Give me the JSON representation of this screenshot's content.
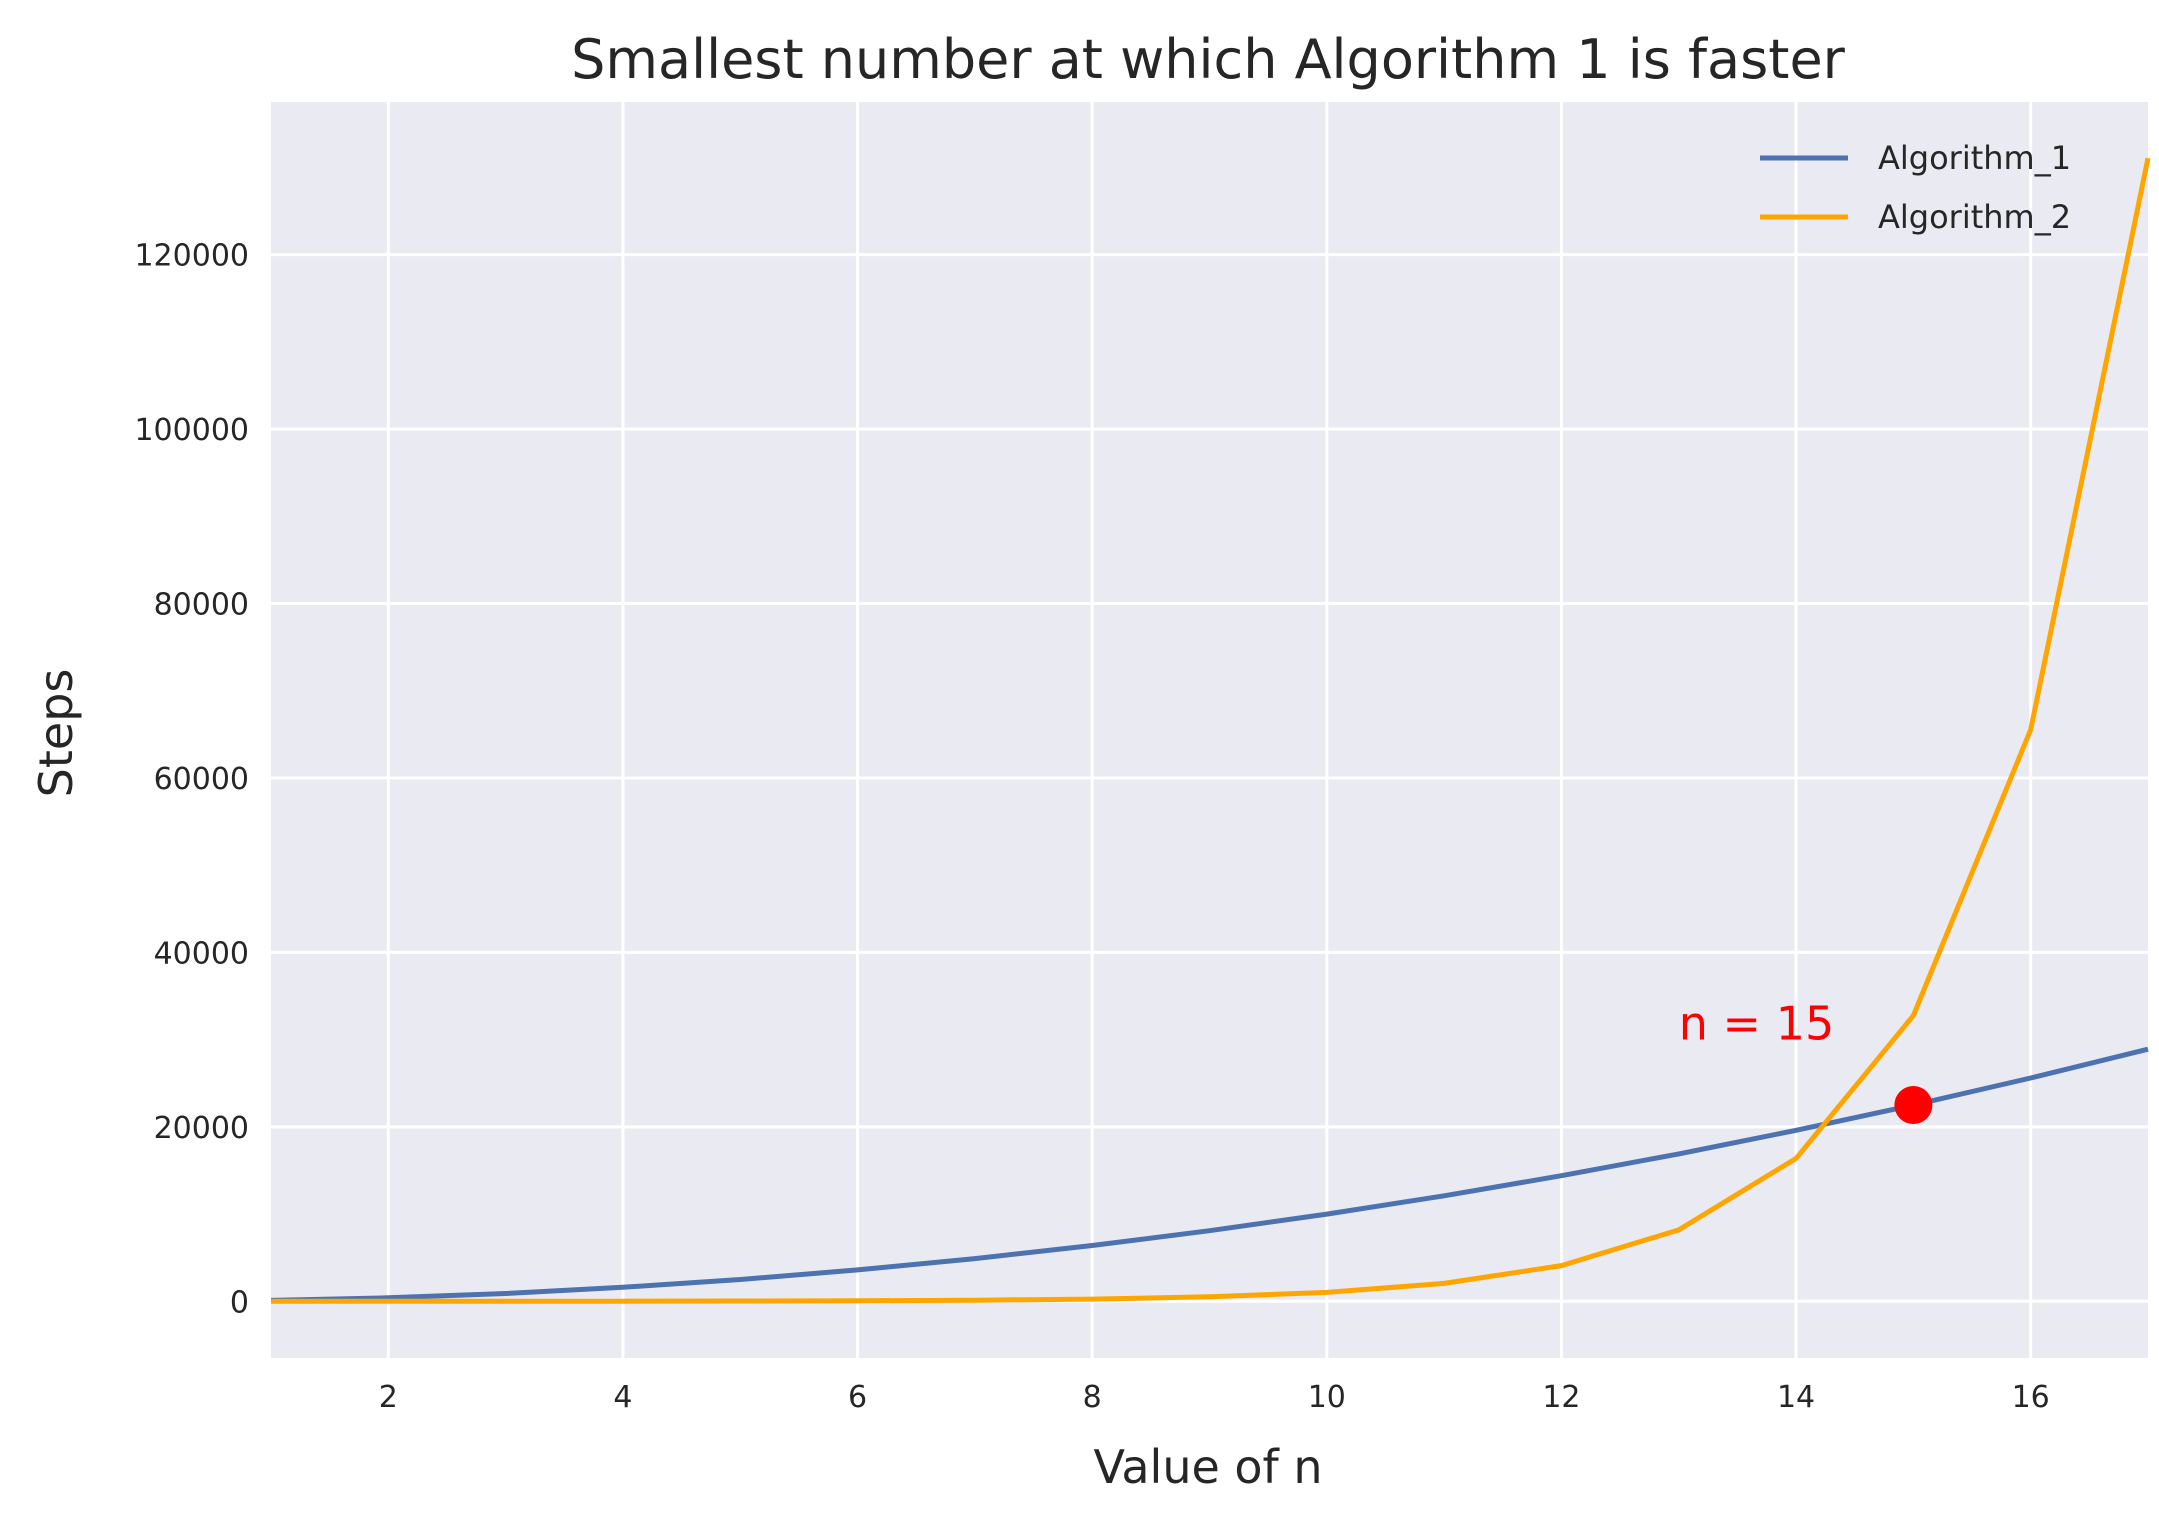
{
  "chart_data": {
    "type": "line",
    "title": "Smallest number at which Algorithm 1 is faster",
    "xlabel": "Value of n",
    "ylabel": "Steps",
    "xlim": [
      1,
      17
    ],
    "ylim": [
      -6500,
      137500
    ],
    "xticks": [
      2,
      4,
      6,
      8,
      10,
      12,
      14,
      16
    ],
    "yticks": [
      0,
      20000,
      40000,
      60000,
      80000,
      100000,
      120000
    ],
    "grid": true,
    "background": "#eaeaf2",
    "legend_position": "top-right",
    "x": [
      1,
      2,
      3,
      4,
      5,
      6,
      7,
      8,
      9,
      10,
      11,
      12,
      13,
      14,
      15,
      16,
      17
    ],
    "series": [
      {
        "name": "Algorithm_1",
        "color": "#4c72b0",
        "values": [
          100,
          400,
          900,
          1600,
          2500,
          3600,
          4900,
          6400,
          8100,
          10000,
          12100,
          14400,
          16900,
          19600,
          22500,
          25600,
          28900
        ]
      },
      {
        "name": "Algorithm_2",
        "color": "#ffa500",
        "values": [
          2,
          4,
          8,
          16,
          32,
          64,
          128,
          256,
          512,
          1024,
          2048,
          4096,
          8192,
          16384,
          32768,
          65536,
          131072
        ]
      }
    ],
    "annotation": {
      "text": "n = 15",
      "color": "#ff0000",
      "point": {
        "x": 15,
        "y": 22500
      },
      "text_at": {
        "x": 13,
        "y": 30000
      }
    }
  }
}
